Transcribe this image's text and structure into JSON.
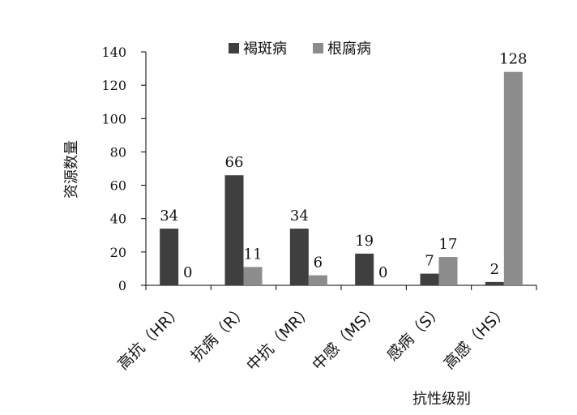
{
  "chart_data": {
    "type": "bar",
    "title": "",
    "xlabel": "抗性级别",
    "ylabel": "资源数量",
    "ylim": [
      0,
      140
    ],
    "yticks": [
      0,
      20,
      40,
      60,
      80,
      100,
      120,
      140
    ],
    "grid": false,
    "legend_position": "top",
    "categories": [
      "高抗（HR）",
      "抗病（R）",
      "中抗（MR）",
      "中感（MS）",
      "感病（S）",
      "高感（HS）"
    ],
    "series": [
      {
        "name": "褐斑病",
        "color": "#3f3f3f",
        "values": [
          34,
          66,
          34,
          19,
          7,
          2
        ]
      },
      {
        "name": "根腐病",
        "color": "#8c8c8c",
        "values": [
          0,
          11,
          6,
          0,
          17,
          128
        ]
      }
    ]
  }
}
